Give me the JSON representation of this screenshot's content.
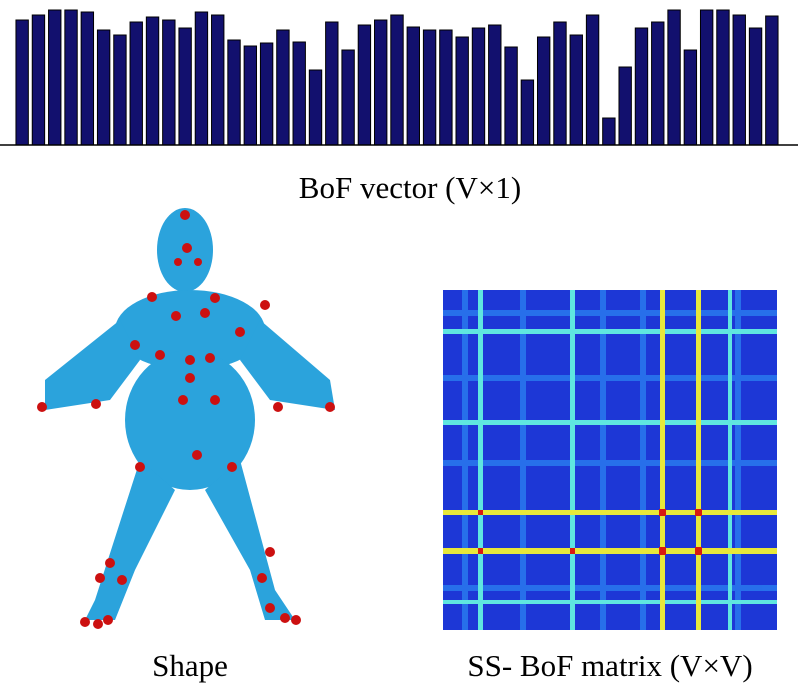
{
  "chart_data": {
    "type": "bar",
    "title": "BoF vector (V×1)",
    "values": [
      125,
      130,
      135,
      135,
      133,
      115,
      110,
      123,
      128,
      125,
      117,
      133,
      130,
      105,
      99,
      102,
      115,
      103,
      75,
      123,
      95,
      120,
      125,
      130,
      118,
      115,
      115,
      108,
      117,
      120,
      98,
      65,
      108,
      123,
      110,
      130,
      27,
      78,
      117,
      123,
      135,
      95,
      135,
      135,
      130,
      117,
      129
    ],
    "color": "#12106e",
    "ylim": [
      0,
      140
    ]
  },
  "captions": {
    "shape": "Shape",
    "matrix": "SS- BoF matrix (V×V)"
  }
}
